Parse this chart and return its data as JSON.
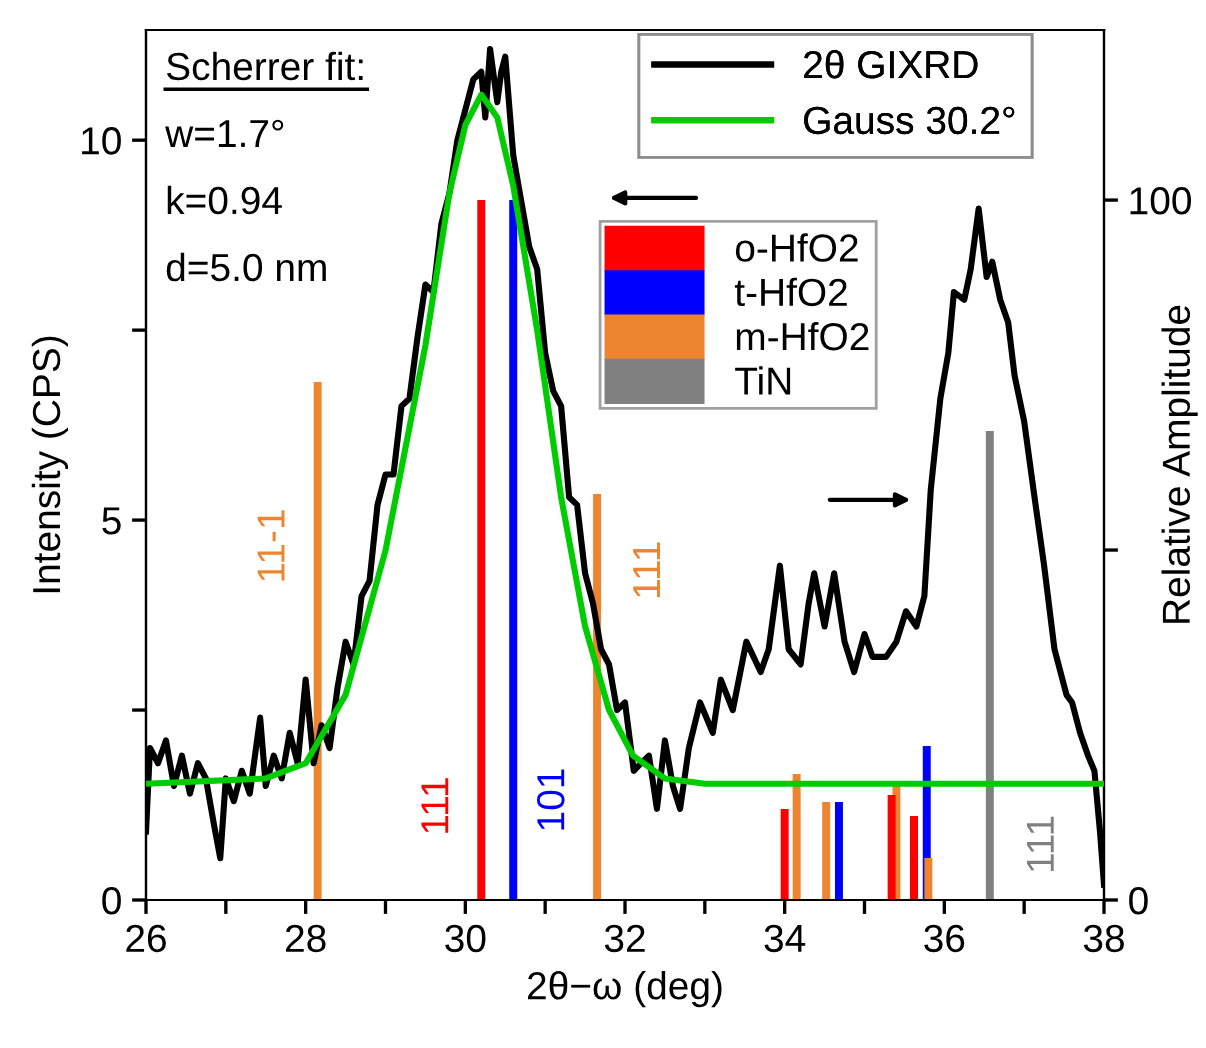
{
  "chart_data": {
    "type": "line",
    "xlabel": "2θ−ω (deg)",
    "ylabel": "Intensity (CPS)",
    "y2label": "Relative Amplitude",
    "xlim": [
      26,
      38
    ],
    "xticks": [
      26,
      {
        "value": 27,
        "label": null
      },
      28,
      {
        "value": 29,
        "label": null
      },
      30,
      {
        "value": 31,
        "label": null
      },
      32,
      {
        "value": 33,
        "label": null
      },
      34,
      {
        "value": 35,
        "label": null
      },
      36,
      {
        "value": 37,
        "label": null
      },
      38
    ],
    "ylim": [
      0,
      11.45
    ],
    "yticks": [
      0,
      {
        "value": 2.5,
        "label": null
      },
      5,
      {
        "value": 7.5,
        "label": null
      },
      10
    ],
    "y2lim": [
      0,
      124.3
    ],
    "y2ticks": [
      0,
      {
        "value": 50,
        "label": null
      },
      100
    ],
    "legend": "top right",
    "grid": false,
    "series": [
      {
        "name": "2θ GIXRD",
        "color": "#000000",
        "x": [
          26.0,
          26.05,
          26.15,
          26.25,
          26.35,
          26.45,
          26.55,
          26.65,
          26.75,
          26.85,
          26.93,
          27.0,
          27.1,
          27.2,
          27.3,
          27.43,
          27.5,
          27.6,
          27.7,
          27.8,
          27.9,
          28.0,
          28.1,
          28.2,
          28.3,
          28.4,
          28.5,
          28.6,
          28.7,
          28.8,
          28.9,
          29.0,
          29.1,
          29.2,
          29.3,
          29.4,
          29.5,
          29.6,
          29.7,
          29.8,
          29.9,
          30.0,
          30.1,
          30.2,
          30.25,
          30.31,
          30.4,
          30.45,
          30.5,
          30.6,
          30.7,
          30.8,
          30.9,
          31.0,
          31.1,
          31.2,
          31.3,
          31.4,
          31.5,
          31.6,
          31.7,
          31.8,
          31.9,
          32.0,
          32.11,
          32.2,
          32.3,
          32.4,
          32.5,
          32.6,
          32.69,
          32.8,
          32.94,
          33.1,
          33.2,
          33.35,
          33.52,
          33.7,
          33.8,
          33.94,
          34.05,
          34.2,
          34.3,
          34.37,
          34.5,
          34.62,
          34.75,
          34.87,
          35.0,
          35.1,
          35.27,
          35.4,
          35.52,
          35.65,
          35.75,
          35.83,
          35.95,
          36.05,
          36.12,
          36.25,
          36.33,
          36.43,
          36.53,
          36.6,
          36.7,
          36.8,
          36.88,
          37.0,
          37.13,
          37.25,
          37.38,
          37.53,
          37.6,
          37.7,
          37.8,
          37.88,
          37.95,
          38.0
        ],
        "values": [
          0.9,
          2.0,
          1.8,
          2.1,
          1.5,
          1.9,
          1.4,
          1.8,
          1.6,
          1.0,
          0.55,
          1.6,
          1.3,
          1.7,
          1.4,
          2.4,
          1.5,
          1.9,
          1.6,
          2.2,
          1.8,
          2.9,
          1.8,
          2.3,
          2.0,
          2.8,
          3.4,
          3.1,
          4.0,
          4.2,
          5.2,
          5.6,
          5.6,
          6.5,
          6.6,
          7.4,
          8.1,
          8.0,
          8.9,
          9.3,
          10.0,
          10.4,
          10.8,
          10.9,
          10.3,
          11.2,
          10.5,
          10.9,
          11.1,
          9.8,
          9.2,
          8.6,
          8.3,
          7.2,
          6.7,
          6.5,
          5.3,
          5.2,
          4.3,
          3.9,
          3.3,
          3.1,
          2.5,
          2.6,
          1.7,
          1.8,
          1.9,
          1.2,
          2.1,
          1.5,
          1.2,
          2.0,
          2.6,
          2.2,
          2.9,
          2.5,
          3.4,
          3.0,
          3.3,
          4.4,
          3.3,
          3.1,
          3.9,
          4.3,
          3.6,
          4.3,
          3.4,
          3.0,
          3.5,
          3.2,
          3.2,
          3.4,
          3.8,
          3.6,
          4.0,
          5.4,
          6.6,
          7.2,
          8.0,
          7.9,
          8.3,
          9.1,
          8.2,
          8.4,
          7.9,
          7.6,
          6.9,
          6.3,
          5.3,
          4.4,
          3.3,
          2.7,
          2.6,
          2.2,
          1.9,
          1.7,
          0.9,
          0.2
        ]
      },
      {
        "name": "Gauss 30.2°",
        "color": "#00cc00",
        "x": [
          26.0,
          27.5,
          28.0,
          28.5,
          29.0,
          29.5,
          29.8,
          30.0,
          30.2,
          30.4,
          30.6,
          30.9,
          31.2,
          31.5,
          31.8,
          32.1,
          32.5,
          33.0,
          38.0
        ],
        "values": [
          1.53,
          1.6,
          1.8,
          2.7,
          4.6,
          7.3,
          9.3,
          10.2,
          10.6,
          10.3,
          9.4,
          7.5,
          5.3,
          3.6,
          2.5,
          1.9,
          1.6,
          1.53,
          1.53
        ]
      },
      {
        "name": "o-HfO2",
        "type": "bar",
        "axis": "y2",
        "color": "#ff0000",
        "x": [
          30.2,
          34.0,
          35.34,
          35.62
        ],
        "values": [
          100,
          13,
          15,
          12
        ]
      },
      {
        "name": "t-HfO2",
        "type": "bar",
        "axis": "y2",
        "color": "#0000ff",
        "x": [
          30.6,
          34.68,
          35.78
        ],
        "values": [
          100,
          14,
          22
        ]
      },
      {
        "name": "m-HfO2",
        "type": "bar",
        "axis": "y2",
        "color": "#ed8530",
        "x": [
          28.15,
          31.65,
          34.15,
          34.52,
          35.4,
          35.8
        ],
        "values": [
          74,
          58,
          18,
          14,
          17,
          6
        ]
      },
      {
        "name": "TiN",
        "type": "bar",
        "axis": "y2",
        "color": "#808080",
        "x": [
          36.57
        ],
        "values": [
          67
        ]
      }
    ],
    "annotations": [
      "Scherrer fit:",
      "w=1.7°",
      "k=0.94",
      "d=5.0 nm",
      "11-1",
      "111",
      "111",
      "101",
      "111"
    ]
  }
}
